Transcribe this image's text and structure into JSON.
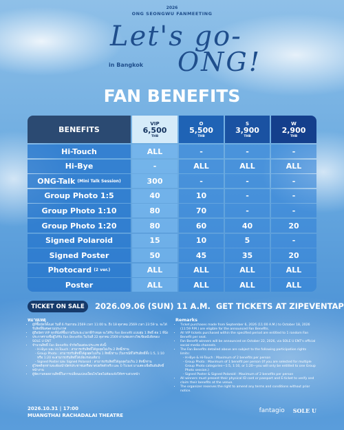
{
  "header": {
    "year": "2026",
    "subtitle": "ONG SEONGWU FANMEETING",
    "title_line1": "Let's go-",
    "title_line2": "ONG!",
    "location": "in Bangkok"
  },
  "section_title": "FAN BENEFITS",
  "table": {
    "columns": [
      {
        "name": "BENEFITS"
      },
      {
        "tier": "VIP",
        "price": "6,500",
        "unit": "THB"
      },
      {
        "tier": "O",
        "price": "5,500",
        "unit": "THB"
      },
      {
        "tier": "S",
        "price": "3,900",
        "unit": "THB"
      },
      {
        "tier": "W",
        "price": "2,900",
        "unit": "THB"
      }
    ],
    "rows": [
      {
        "label": "Hi-Touch",
        "cells": [
          "ALL",
          "-",
          "-",
          "-"
        ]
      },
      {
        "label": "Hi-Bye",
        "cells": [
          "-",
          "ALL",
          "ALL",
          "ALL"
        ]
      },
      {
        "label": "ONG-Talk",
        "note": "(Mini Talk Session)",
        "cells": [
          300,
          "-",
          "-",
          "-"
        ]
      },
      {
        "label": "Group Photo 1:5",
        "cells": [
          40,
          10,
          "-",
          "-"
        ]
      },
      {
        "label": "Group Photo 1:10",
        "cells": [
          80,
          70,
          "-",
          "-"
        ]
      },
      {
        "label": "Group Photo 1:20",
        "cells": [
          80,
          60,
          40,
          20
        ]
      },
      {
        "label": "Signed Polaroid",
        "cells": [
          15,
          10,
          5,
          "-"
        ]
      },
      {
        "label": "Signed Poster",
        "cells": [
          50,
          45,
          35,
          20
        ]
      },
      {
        "label": "Photocard",
        "note": "(2 ver.)",
        "cells": [
          "ALL",
          "ALL",
          "ALL",
          "ALL"
        ]
      },
      {
        "label": "Poster",
        "cells": [
          "ALL",
          "ALL",
          "ALL",
          "ALL"
        ]
      }
    ]
  },
  "ticket": {
    "label": "TICKET ON SALE",
    "datetime": "2026.09.06 (SUN) 11 A.M.",
    "cta": "GET TICKETS AT ZIPEVENTAPP.COM"
  },
  "remarks_th": {
    "title": "หมายเหตุ",
    "items": [
      {
        "text": "ผู้ที่ซื้อบัตรตั้งแต่ วันที่ 6 กันยายน 2569 เวลา 11:00 น. ถึง 18 ตุลาคม 2569 เวลา 23:59 น. จะได้รับสิทธิ์พิเศษตามประกาศ"
      },
      {
        "text": "ผู้ถือบัตร VIP ทุกที่นั่งที่ซื้อภายในระยะเวลาที่กำหนด จะได้รับ Fan Benefit แบบสุ่ม 1 สิทธิ์ ต่อ 1 ที่นั่ง"
      },
      {
        "text": "ประกาศรายชื่อผู้ได้รับ Fan Benefits ในวันที่ 22 ตุลาคม 2569 ผ่านช่องทางโซเชียลมีเดียของ SOLE U ENT"
      },
      {
        "text": "จำนวนสิทธิ์ Fan Benefits จำกัดในแต่ละประเภท ดังนี้:",
        "sub": [
          "Hi-Bye และ Hi-Touch : สามารถรับสิทธิ์ได้สูงสุดไม่เกิน 2 สิทธิ์/ท่าน",
          "Group Photo : สามารถรับสิทธิ์ได้สูงสุดไม่เกิน 1 สิทธิ์/ท่าน (ในกรณีที่ได้รับสิทธิ์ทั้ง 1:5, 1:10 หรือ 1:20 จะสามารถรับสิทธิ์ได้เพียงรอบเดียว)",
          "Signed Poster และ Signed Polaroid : สามารถรับสิทธิ์ได้สูงสุดไม่เกิน 2 สิทธิ์/ท่าน"
        ]
      },
      {
        "text": "ผู้โชคดีทุกท่านจะต้องนำบัตรประชาชนหรือพาสปอร์ตตัวจริง และ E-Ticket มาแสดงเพื่อยืนยันสิทธิ์หน้างาน"
      },
      {
        "text": "ผู้จัดงานขอสงวนสิทธิ์ในการเปลี่ยนแปลงเงื่อนไขโดยไม่ต้องแจ้งให้ทราบล่วงหน้า"
      }
    ]
  },
  "remarks_en": {
    "title": "Remarks",
    "items": [
      {
        "text": "Ticket purchases made from September 6, 2026 (11:00 A.M.) to October 18, 2026 (11:59 P.M.) are eligible for the announced Fan Benefits."
      },
      {
        "text": "All VIP tickets purchased within the specified period are entitled to 1 random Fan Benefit per seat."
      },
      {
        "text": "Fan Benefit winners will be announced on October 22, 2026, via SOLE U ENT's official social media channels."
      },
      {
        "text": "The Fan Benefits detailed above are subject to the following participation rights limits:",
        "sub": [
          "Hi-Bye & Hi-Touch : Maximum of 2 benefits per person",
          "Group Photo : Maximum of 1 benefit per person (If you are selected for multiple Group Photo categories—1:5, 1:10, or 1:20—you will only be entitled to one Group Photo session.)",
          "Signed Poster & Signed Polaroid : Maximum of 2 benefits per person"
        ]
      },
      {
        "text": "All winners must present their physical ID card or passport and E-ticket to verify and claim their benefits at the venue."
      },
      {
        "text": "The organizer reserves the right to amend any terms and conditions without prior notice."
      }
    ]
  },
  "footer": {
    "date": "2026.10.31 | 17:00",
    "venue": "MUANGTHAI RACHADALAI THEATRE",
    "logos": [
      "fantagio",
      "SOLE U"
    ]
  }
}
